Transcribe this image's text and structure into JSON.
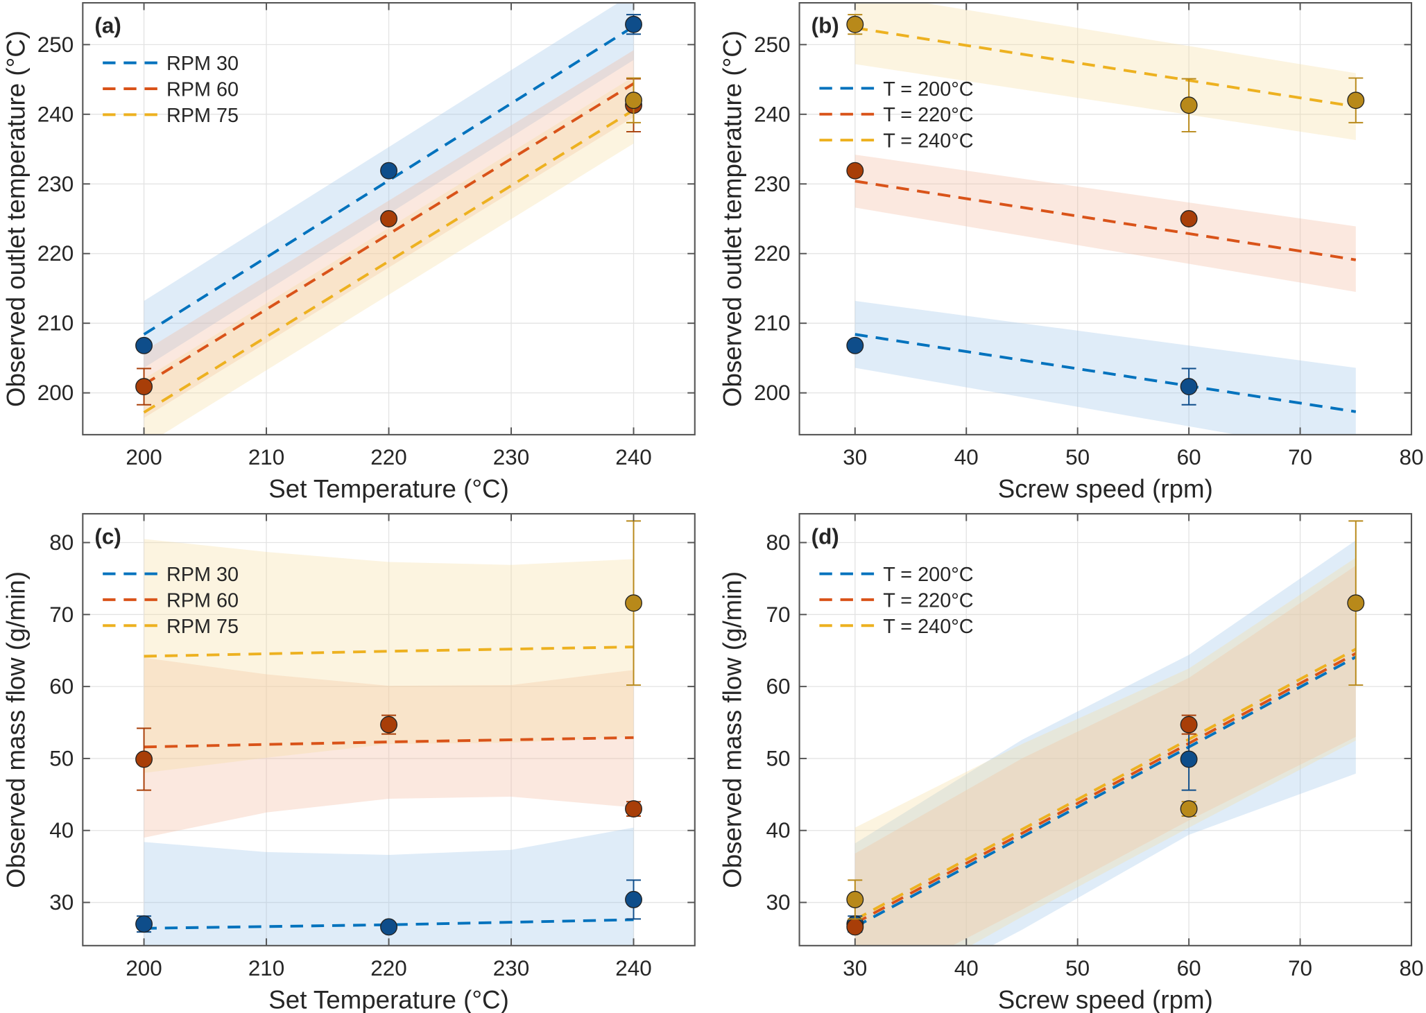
{
  "colors": {
    "s1": "#0072BD",
    "s2": "#D95319",
    "s3": "#EDB120",
    "m1": "#0E4D8A",
    "m2": "#A83E08",
    "m3": "#B8891A",
    "m_mixed": "#3B5A75"
  },
  "chart_data": [
    {
      "type": "line",
      "panel_label": "(a)",
      "xlabel": "Set Temperature (°C)",
      "ylabel": "Observed outlet temperature (°C)",
      "xlim": [
        195,
        245
      ],
      "ylim": [
        194,
        256
      ],
      "xticks": [
        200,
        210,
        220,
        230,
        240
      ],
      "yticks": [
        200,
        210,
        220,
        230,
        240,
        250
      ],
      "grid": true,
      "legend_position": "top-left",
      "series": [
        {
          "name": "RPM 30",
          "fit": [
            [
              200,
              208.4
            ],
            [
              240,
              252.6
            ]
          ],
          "band": [
            [
              200,
              203.6,
              213.2
            ],
            [
              240,
              247.8,
              257.4
            ]
          ],
          "points": [
            {
              "x": 200,
              "y": 206.8,
              "err": 0
            },
            {
              "x": 220,
              "y": 231.9,
              "err": 0
            },
            {
              "x": 240,
              "y": 252.9,
              "err": 1.4
            }
          ]
        },
        {
          "name": "RPM 60",
          "fit": [
            [
              200,
              201.2
            ],
            [
              240,
              244.4
            ]
          ],
          "band": [
            [
              200,
              196.4,
              206.0
            ],
            [
              240,
              239.6,
              249.2
            ]
          ],
          "points": [
            {
              "x": 200,
              "y": 200.9,
              "err": 2.6
            },
            {
              "x": 220,
              "y": 225.0,
              "err": 0
            },
            {
              "x": 240,
              "y": 241.3,
              "err": 3.8
            }
          ]
        },
        {
          "name": "RPM 75",
          "fit": [
            [
              200,
              197.2
            ],
            [
              240,
              240.6
            ]
          ],
          "band": [
            [
              200,
              192.4,
              202.0
            ],
            [
              240,
              235.8,
              245.4
            ]
          ],
          "points": [
            {
              "x": 240,
              "y": 242.0,
              "err": 3.2
            }
          ]
        }
      ]
    },
    {
      "type": "line",
      "panel_label": "(b)",
      "xlabel": "Screw speed (rpm)",
      "ylabel": "Observed outlet temperature (°C)",
      "xlim": [
        25,
        80
      ],
      "ylim": [
        194,
        256
      ],
      "xticks": [
        30,
        40,
        50,
        60,
        70,
        80
      ],
      "yticks": [
        200,
        210,
        220,
        230,
        240,
        250
      ],
      "grid": true,
      "legend_position": "upper-left",
      "series": [
        {
          "name": "T = 200°C",
          "fit": [
            [
              30,
              208.4
            ],
            [
              75,
              197.3
            ]
          ],
          "band": [
            [
              30,
              203.6,
              213.2
            ],
            [
              75,
              191.0,
              203.6
            ]
          ],
          "points": [
            {
              "x": 30,
              "y": 206.8,
              "err": 0
            },
            {
              "x": 60,
              "y": 200.9,
              "err": 2.6
            }
          ]
        },
        {
          "name": "T = 220°C",
          "fit": [
            [
              30,
              230.4
            ],
            [
              75,
              219.1
            ]
          ],
          "band": [
            [
              30,
              226.6,
              234.2
            ],
            [
              75,
              214.5,
              223.9
            ]
          ],
          "points": [
            {
              "x": 30,
              "y": 231.9,
              "err": 0
            },
            {
              "x": 60,
              "y": 225.0,
              "err": 0
            }
          ]
        },
        {
          "name": "T = 240°C",
          "fit": [
            [
              30,
              252.4
            ],
            [
              75,
              241.1
            ]
          ],
          "band": [
            [
              30,
              247.2,
              257.6
            ],
            [
              75,
              236.3,
              245.9
            ]
          ],
          "points": [
            {
              "x": 30,
              "y": 252.9,
              "err": 1.4
            },
            {
              "x": 60,
              "y": 241.3,
              "err": 3.8
            },
            {
              "x": 75,
              "y": 242.0,
              "err": 3.2
            }
          ]
        }
      ]
    },
    {
      "type": "line",
      "panel_label": "(c)",
      "xlabel": "Set Temperature (°C)",
      "ylabel": "Observed mass flow (g/min)",
      "xlim": [
        195,
        245
      ],
      "ylim": [
        24,
        84
      ],
      "xticks": [
        200,
        210,
        220,
        230,
        240
      ],
      "yticks": [
        30,
        40,
        50,
        60,
        70,
        80
      ],
      "grid": true,
      "legend_position": "upper-left",
      "series": [
        {
          "name": "RPM 30",
          "fit": [
            [
              200,
              26.4
            ],
            [
              220,
              26.9
            ],
            [
              240,
              27.6
            ]
          ],
          "band": [
            [
              200,
              14.0,
              38.4
            ],
            [
              210,
              14.0,
              37.0
            ],
            [
              220,
              15.0,
              36.6
            ],
            [
              230,
              16.0,
              37.3
            ],
            [
              240,
              15.0,
              40.4
            ]
          ],
          "points": [
            {
              "x": 200,
              "y": 27.0,
              "err": 1.1
            },
            {
              "x": 220,
              "y": 26.6,
              "err": 0.5
            },
            {
              "x": 240,
              "y": 30.4,
              "err": 2.7
            }
          ]
        },
        {
          "name": "RPM 60",
          "fit": [
            [
              200,
              51.6
            ],
            [
              220,
              52.3
            ],
            [
              240,
              52.9
            ]
          ],
          "band": [
            [
              200,
              39.0,
              64.0
            ],
            [
              210,
              42.5,
              61.7
            ],
            [
              220,
              44.4,
              60.1
            ],
            [
              230,
              44.7,
              60.2
            ],
            [
              240,
              43.2,
              62.3
            ]
          ],
          "points": [
            {
              "x": 200,
              "y": 49.9,
              "err": 4.3
            },
            {
              "x": 220,
              "y": 54.7,
              "err": 1.3
            },
            {
              "x": 240,
              "y": 43.0,
              "err": 1.0
            }
          ]
        },
        {
          "name": "RPM 75",
          "fit": [
            [
              200,
              64.2
            ],
            [
              220,
              64.9
            ],
            [
              240,
              65.5
            ]
          ],
          "band": [
            [
              200,
              48.0,
              80.5
            ],
            [
              210,
              50.1,
              78.7
            ],
            [
              220,
              52.0,
              77.3
            ],
            [
              230,
              52.2,
              76.9
            ],
            [
              240,
              53.0,
              77.7
            ]
          ],
          "points": [
            {
              "x": 240,
              "y": 71.6,
              "err": 11.4
            }
          ]
        }
      ]
    },
    {
      "type": "line",
      "panel_label": "(d)",
      "xlabel": "Screw speed (rpm)",
      "ylabel": "Observed mass flow (g/min)",
      "xlim": [
        25,
        80
      ],
      "ylim": [
        24,
        84
      ],
      "xticks": [
        30,
        40,
        50,
        60,
        70,
        80
      ],
      "yticks": [
        30,
        40,
        50,
        60,
        70,
        80
      ],
      "grid": true,
      "legend_position": "upper-left",
      "series": [
        {
          "name": "T = 200°C",
          "fit": [
            [
              30,
              26.6
            ],
            [
              75,
              64.1
            ]
          ],
          "band": [
            [
              30,
              14.0,
              38.2
            ],
            [
              45,
              26.2,
              52.6
            ],
            [
              60,
              39.4,
              64.4
            ],
            [
              75,
              47.9,
              80.3
            ]
          ],
          "points": [
            {
              "x": 30,
              "y": 27.0,
              "err": 1.1
            },
            {
              "x": 60,
              "y": 49.9,
              "err": 4.3
            }
          ]
        },
        {
          "name": "T = 220°C",
          "fit": [
            [
              30,
              27.1
            ],
            [
              75,
              64.6
            ]
          ],
          "band": [
            [
              30,
              17.0,
              36.8
            ],
            [
              45,
              29.0,
              50.0
            ],
            [
              60,
              41.4,
              61.2
            ],
            [
              75,
              53.0,
              76.8
            ]
          ],
          "points": [
            {
              "x": 30,
              "y": 26.6,
              "err": 0.5
            },
            {
              "x": 60,
              "y": 54.7,
              "err": 1.3
            }
          ]
        },
        {
          "name": "T = 240°C",
          "fit": [
            [
              30,
              27.6
            ],
            [
              75,
              65.2
            ]
          ],
          "band": [
            [
              30,
              15.0,
              40.4
            ],
            [
              45,
              28.0,
              52.0
            ],
            [
              60,
              40.4,
              62.5
            ],
            [
              75,
              52.5,
              77.9
            ]
          ],
          "points": [
            {
              "x": 30,
              "y": 30.4,
              "err": 2.7
            },
            {
              "x": 60,
              "y": 43.0,
              "err": 1.0
            },
            {
              "x": 75,
              "y": 71.6,
              "err": 11.4
            }
          ]
        }
      ]
    }
  ]
}
